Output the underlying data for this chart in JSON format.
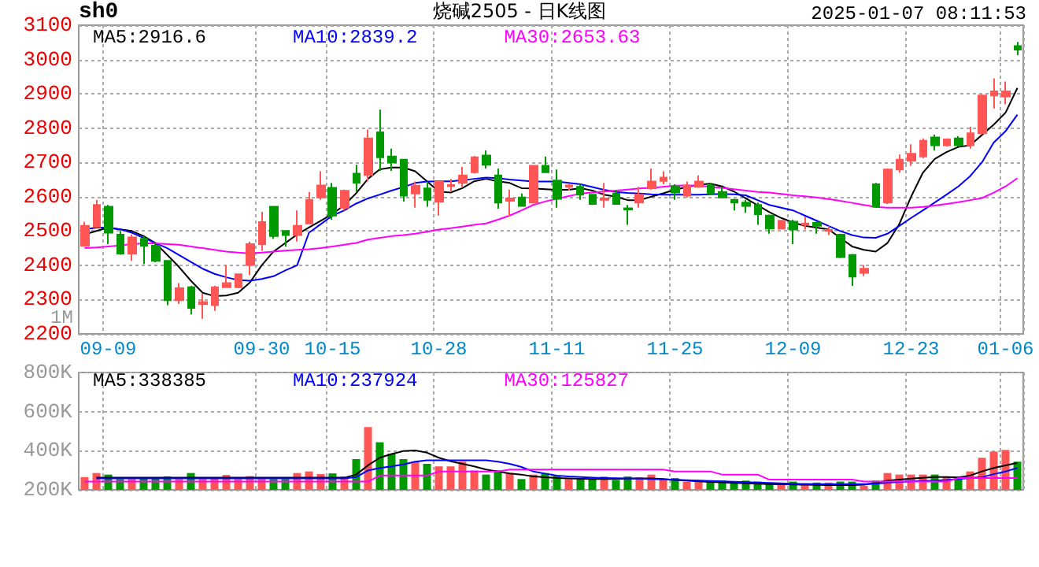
{
  "chart_data": [
    {
      "type": "candlestick",
      "title": "烧碱2505 - 日K线图",
      "annotations": [
        "sh0",
        "2025-01-07 08:11:53",
        "1M"
      ],
      "categories": [
        null,
        null,
        "09-09",
        null,
        null,
        null,
        null,
        null,
        null,
        null,
        null,
        null,
        null,
        null,
        null,
        "09-30",
        null,
        null,
        null,
        null,
        null,
        "10-15",
        null,
        null,
        null,
        null,
        null,
        null,
        null,
        null,
        "10-28",
        null,
        null,
        null,
        null,
        null,
        null,
        null,
        null,
        null,
        "11-11",
        null,
        null,
        null,
        null,
        null,
        null,
        null,
        null,
        null,
        "11-25",
        null,
        null,
        null,
        null,
        null,
        null,
        null,
        null,
        null,
        "12-09",
        null,
        null,
        null,
        null,
        null,
        null,
        null,
        null,
        null,
        "12-23",
        null,
        null,
        null,
        null,
        null,
        null,
        null,
        "01-06",
        null
      ],
      "ohlc": [
        [
          2457,
          2527,
          2454,
          2515
        ],
        [
          2512,
          2591,
          2512,
          2576
        ],
        [
          2571,
          2576,
          2462,
          2495
        ],
        [
          2489,
          2500,
          2431,
          2434
        ],
        [
          2434,
          2489,
          2413,
          2481
        ],
        [
          2477,
          2484,
          2404,
          2457
        ],
        [
          2457,
          2466,
          2409,
          2413
        ],
        [
          2413,
          2413,
          2284,
          2298
        ],
        [
          2298,
          2348,
          2287,
          2333
        ],
        [
          2336,
          2340,
          2257,
          2276
        ],
        [
          2287,
          2317,
          2244,
          2293
        ],
        [
          2284,
          2340,
          2267,
          2336
        ],
        [
          2336,
          2401,
          2336,
          2348
        ],
        [
          2336,
          2374,
          2333,
          2374
        ],
        [
          2401,
          2469,
          2371,
          2462
        ],
        [
          2462,
          2556,
          2442,
          2526
        ],
        [
          2571,
          2571,
          2477,
          2485
        ],
        [
          2500,
          2500,
          2454,
          2488
        ],
        [
          2488,
          2560,
          2469,
          2515
        ],
        [
          2522,
          2614,
          2522,
          2591
        ],
        [
          2598,
          2674,
          2591,
          2633
        ],
        [
          2626,
          2640,
          2533,
          2545
        ],
        [
          2568,
          2621,
          2560,
          2617
        ],
        [
          2667,
          2693,
          2614,
          2641
        ],
        [
          2664,
          2796,
          2644,
          2770
        ],
        [
          2788,
          2854,
          2675,
          2715
        ],
        [
          2717,
          2740,
          2675,
          2700
        ],
        [
          2708,
          2708,
          2586,
          2603
        ],
        [
          2609,
          2644,
          2568,
          2632
        ],
        [
          2624,
          2644,
          2571,
          2591
        ],
        [
          2586,
          2644,
          2545,
          2644
        ],
        [
          2631,
          2652,
          2614,
          2634
        ],
        [
          2641,
          2687,
          2629,
          2662
        ],
        [
          2671,
          2719,
          2667,
          2715
        ],
        [
          2720,
          2735,
          2682,
          2693
        ],
        [
          2662,
          2682,
          2565,
          2583
        ],
        [
          2588,
          2621,
          2542,
          2595
        ],
        [
          2598,
          2609,
          2573,
          2573
        ],
        [
          2583,
          2693,
          2580,
          2690
        ],
        [
          2690,
          2717,
          2671,
          2671
        ],
        [
          2647,
          2679,
          2568,
          2594
        ],
        [
          2629,
          2636,
          2618,
          2633
        ],
        [
          2629,
          2636,
          2591,
          2606
        ],
        [
          2606,
          2606,
          2576,
          2579
        ],
        [
          2591,
          2640,
          2568,
          2595
        ],
        [
          2609,
          2618,
          2579,
          2579
        ],
        [
          2566,
          2576,
          2518,
          2563
        ],
        [
          2583,
          2629,
          2568,
          2606
        ],
        [
          2624,
          2682,
          2621,
          2644
        ],
        [
          2646,
          2674,
          2636,
          2656
        ],
        [
          2629,
          2636,
          2591,
          2612
        ],
        [
          2603,
          2644,
          2598,
          2633
        ],
        [
          2629,
          2662,
          2626,
          2644
        ],
        [
          2633,
          2640,
          2606,
          2609
        ],
        [
          2614,
          2629,
          2598,
          2598
        ],
        [
          2591,
          2594,
          2560,
          2583
        ],
        [
          2583,
          2591,
          2553,
          2573
        ],
        [
          2576,
          2583,
          2518,
          2549
        ],
        [
          2545,
          2548,
          2492,
          2507
        ],
        [
          2507,
          2530,
          2507,
          2530
        ],
        [
          2527,
          2533,
          2462,
          2504
        ],
        [
          2518,
          2542,
          2504,
          2522
        ],
        [
          2524,
          2527,
          2492,
          2515
        ],
        [
          2500,
          2515,
          2488,
          2503
        ],
        [
          2489,
          2492,
          2421,
          2424
        ],
        [
          2430,
          2433,
          2340,
          2367
        ],
        [
          2378,
          2401,
          2369,
          2390
        ],
        [
          2636,
          2640,
          2568,
          2571
        ],
        [
          2583,
          2682,
          2579,
          2679
        ],
        [
          2679,
          2723,
          2670,
          2708
        ],
        [
          2705,
          2753,
          2690,
          2725
        ],
        [
          2717,
          2770,
          2712,
          2763
        ],
        [
          2773,
          2781,
          2735,
          2750
        ],
        [
          2750,
          2770,
          2746,
          2767
        ],
        [
          2770,
          2776,
          2746,
          2750
        ],
        [
          2750,
          2804,
          2740,
          2785
        ],
        [
          2785,
          2898,
          2781,
          2895
        ],
        [
          2895,
          2945,
          2857,
          2907
        ],
        [
          2892,
          2936,
          2869,
          2907
        ],
        [
          3039,
          3051,
          3013,
          3029
        ]
      ],
      "colors": [
        "#ff5555",
        "#ff5555",
        "#009900",
        "#009900",
        "#ff5555",
        "#009900",
        "#009900",
        "#009900",
        "#ff5555",
        "#009900",
        "#ff5555",
        "#ff5555",
        "#ff5555",
        "#ff5555",
        "#ff5555",
        "#ff5555",
        "#009900",
        "#009900",
        "#ff5555",
        "#ff5555",
        "#ff5555",
        "#009900",
        "#ff5555",
        "#009900",
        "#ff5555",
        "#009900",
        "#009900",
        "#009900",
        "#ff5555",
        "#009900",
        "#ff5555",
        "#ff5555",
        "#ff5555",
        "#ff5555",
        "#009900",
        "#009900",
        "#ff5555",
        "#009900",
        "#ff5555",
        "#009900",
        "#009900",
        "#ff5555",
        "#009900",
        "#009900",
        "#ff5555",
        "#009900",
        "#009900",
        "#ff5555",
        "#ff5555",
        "#ff5555",
        "#009900",
        "#ff5555",
        "#ff5555",
        "#009900",
        "#009900",
        "#009900",
        "#009900",
        "#009900",
        "#009900",
        "#ff5555",
        "#009900",
        "#ff5555",
        "#009900",
        "#ff5555",
        "#009900",
        "#009900",
        "#ff5555",
        "#009900",
        "#ff5555",
        "#ff5555",
        "#ff5555",
        "#ff5555",
        "#009900",
        "#ff5555",
        "#009900",
        "#ff5555",
        "#ff5555",
        "#ff5555",
        "#ff5555",
        "#009900"
      ],
      "series": [
        {
          "type": "line",
          "name": "MA5:2916.6",
          "color": "#000000",
          "values": [
            2490,
            2500,
            2510,
            2505,
            2500,
            2485,
            2465,
            2430,
            2395,
            2355,
            2320,
            2310,
            2312,
            2320,
            2350,
            2400,
            2440,
            2465,
            2490,
            2510,
            2530,
            2550,
            2575,
            2610,
            2652,
            2680,
            2685,
            2685,
            2674,
            2645,
            2615,
            2612,
            2625,
            2645,
            2652,
            2645,
            2640,
            2625,
            2624,
            2622,
            2620,
            2620,
            2625,
            2618,
            2606,
            2600,
            2590,
            2590,
            2600,
            2610,
            2620,
            2628,
            2635,
            2638,
            2630,
            2615,
            2595,
            2575,
            2555,
            2538,
            2525,
            2515,
            2510,
            2505,
            2480,
            2455,
            2445,
            2440,
            2465,
            2520,
            2600,
            2670,
            2710,
            2730,
            2745,
            2750,
            2780,
            2810,
            2845,
            2917
          ]
        },
        {
          "type": "line",
          "name": "MA10:2839.2",
          "color": "#0000ff",
          "values": [
            2505,
            2510,
            2510,
            2505,
            2495,
            2480,
            2465,
            2450,
            2430,
            2410,
            2390,
            2375,
            2365,
            2357,
            2355,
            2360,
            2368,
            2385,
            2400,
            2495,
            2520,
            2545,
            2560,
            2580,
            2595,
            2606,
            2618,
            2628,
            2640,
            2644,
            2645,
            2645,
            2648,
            2652,
            2656,
            2654,
            2650,
            2647,
            2644,
            2644,
            2644,
            2640,
            2636,
            2628,
            2620,
            2614,
            2611,
            2609,
            2607,
            2606,
            2606,
            2606,
            2606,
            2607,
            2608,
            2607,
            2604,
            2590,
            2576,
            2568,
            2560,
            2545,
            2530,
            2515,
            2500,
            2488,
            2481,
            2480,
            2492,
            2515,
            2538,
            2560,
            2583,
            2606,
            2630,
            2660,
            2700,
            2758,
            2791,
            2839
          ]
        },
        {
          "type": "line",
          "name": "MA30:2653.63",
          "color": "#ff00ff",
          "values": [
            2450,
            2452,
            2455,
            2458,
            2462,
            2464,
            2464,
            2462,
            2460,
            2455,
            2450,
            2445,
            2440,
            2437,
            2435,
            2437,
            2440,
            2443,
            2445,
            2447,
            2450,
            2455,
            2460,
            2465,
            2475,
            2480,
            2485,
            2488,
            2492,
            2498,
            2504,
            2508,
            2513,
            2518,
            2522,
            2533,
            2545,
            2560,
            2576,
            2586,
            2594,
            2602,
            2609,
            2612,
            2615,
            2618,
            2621,
            2624,
            2626,
            2629,
            2632,
            2633,
            2632,
            2629,
            2626,
            2622,
            2618,
            2614,
            2612,
            2608,
            2604,
            2601,
            2598,
            2593,
            2588,
            2582,
            2576,
            2570,
            2568,
            2568,
            2568,
            2570,
            2574,
            2579,
            2584,
            2590,
            2596,
            2612,
            2630,
            2654
          ]
        }
      ],
      "ylim": [
        2200,
        3100
      ],
      "yticks": [
        2200,
        2300,
        2400,
        2500,
        2600,
        2700,
        2800,
        2900,
        3000,
        3100
      ],
      "grid": true,
      "legend": "top"
    },
    {
      "type": "bar",
      "categories": [
        null,
        null,
        null,
        null,
        null,
        null,
        null,
        null,
        null,
        null,
        null,
        null,
        null,
        null,
        null,
        null,
        null,
        null,
        null,
        null,
        null,
        null,
        null,
        null,
        null,
        null,
        null,
        null,
        null,
        null,
        null,
        null,
        null,
        null,
        null,
        null,
        null,
        null,
        null,
        null,
        null,
        null,
        null,
        null,
        null,
        null,
        null,
        null,
        null,
        null,
        null,
        null,
        null,
        null,
        null,
        null,
        null,
        null,
        null,
        null,
        null,
        null,
        null,
        null,
        null,
        null,
        null,
        null,
        null,
        null,
        null,
        null,
        null,
        null,
        null,
        null,
        null,
        null,
        null,
        null
      ],
      "values": [
        265000,
        286000,
        278000,
        255000,
        255000,
        260000,
        260000,
        268000,
        255000,
        286000,
        255000,
        260000,
        276000,
        255000,
        270000,
        255000,
        255000,
        255000,
        286000,
        294000,
        281000,
        284000,
        268000,
        357000,
        521000,
        443000,
        385000,
        357000,
        344000,
        333000,
        320000,
        320000,
        344000,
        299000,
        278000,
        299000,
        286000,
        255000,
        278000,
        286000,
        273000,
        255000,
        260000,
        255000,
        268000,
        250000,
        268000,
        263000,
        278000,
        255000,
        260000,
        242000,
        250000,
        242000,
        247000,
        242000,
        247000,
        242000,
        237000,
        229000,
        242000,
        229000,
        237000,
        237000,
        242000,
        242000,
        221000,
        247000,
        286000,
        278000,
        278000,
        278000,
        278000,
        268000,
        260000,
        294000,
        364000,
        396000,
        404000,
        344000
      ],
      "colors": [
        "#ff5555",
        "#ff5555",
        "#009900",
        "#009900",
        "#ff5555",
        "#009900",
        "#009900",
        "#009900",
        "#ff5555",
        "#009900",
        "#ff5555",
        "#ff5555",
        "#ff5555",
        "#ff5555",
        "#ff5555",
        "#ff5555",
        "#009900",
        "#009900",
        "#ff5555",
        "#ff5555",
        "#ff5555",
        "#009900",
        "#ff5555",
        "#009900",
        "#ff5555",
        "#009900",
        "#009900",
        "#009900",
        "#ff5555",
        "#009900",
        "#ff5555",
        "#ff5555",
        "#ff5555",
        "#ff5555",
        "#009900",
        "#009900",
        "#ff5555",
        "#009900",
        "#ff5555",
        "#009900",
        "#009900",
        "#ff5555",
        "#009900",
        "#009900",
        "#ff5555",
        "#009900",
        "#009900",
        "#ff5555",
        "#ff5555",
        "#ff5555",
        "#009900",
        "#ff5555",
        "#ff5555",
        "#009900",
        "#009900",
        "#009900",
        "#009900",
        "#009900",
        "#009900",
        "#ff5555",
        "#009900",
        "#ff5555",
        "#009900",
        "#ff5555",
        "#009900",
        "#009900",
        "#ff5555",
        "#009900",
        "#ff5555",
        "#ff5555",
        "#ff5555",
        "#ff5555",
        "#009900",
        "#ff5555",
        "#009900",
        "#ff5555",
        "#ff5555",
        "#ff5555",
        "#ff5555",
        "#009900"
      ],
      "series": [
        {
          "type": "line",
          "name": "MA5:338385",
          "color": "#000000",
          "values": [
            null,
            262000,
            262000,
            262000,
            262000,
            262000,
            262000,
            262000,
            262000,
            262000,
            262000,
            262000,
            262000,
            262000,
            262000,
            262000,
            262000,
            262000,
            262000,
            262000,
            262000,
            262000,
            262000,
            278000,
            325000,
            364000,
            383000,
            398000,
            401000,
            390000,
            364000,
            346000,
            333000,
            320000,
            304000,
            294000,
            284000,
            278000,
            268000,
            264000,
            260000,
            258000,
            256000,
            255000,
            255000,
            255000,
            257000,
            258000,
            258000,
            255000,
            250000,
            247000,
            243000,
            240000,
            238000,
            235000,
            233000,
            231000,
            229000,
            228000,
            227000,
            226000,
            225000,
            224000,
            224000,
            224000,
            226000,
            235000,
            247000,
            252000,
            257000,
            261000,
            265000,
            265000,
            263000,
            273000,
            294000,
            312000,
            325000,
            338000
          ]
        },
        {
          "type": "line",
          "name": "MA10:237924",
          "color": "#0000ff",
          "values": [
            null,
            258000,
            258000,
            258000,
            258000,
            258000,
            258000,
            258000,
            258000,
            258000,
            258000,
            258000,
            258000,
            258000,
            258000,
            258000,
            258000,
            258000,
            258000,
            258000,
            258000,
            258000,
            258000,
            265000,
            299000,
            312000,
            320000,
            330000,
            344000,
            351000,
            351000,
            351000,
            351000,
            351000,
            351000,
            344000,
            333000,
            317000,
            294000,
            283000,
            273000,
            268000,
            265000,
            262000,
            260000,
            259000,
            258000,
            257000,
            255000,
            253000,
            251000,
            249000,
            247000,
            245000,
            243000,
            241000,
            239000,
            237000,
            235000,
            233000,
            231000,
            230000,
            229000,
            229000,
            229000,
            229000,
            229000,
            231000,
            236000,
            240000,
            243000,
            246000,
            247000,
            250000,
            255000,
            260000,
            265000,
            280000,
            294000,
            312000
          ]
        },
        {
          "type": "line",
          "name": "MA30:125827",
          "color": "#ff00ff",
          "values": [
            242000,
            242000,
            242000,
            242000,
            242000,
            242000,
            242000,
            242000,
            242000,
            242000,
            242000,
            242000,
            242000,
            242000,
            242000,
            242000,
            242000,
            242000,
            242000,
            242000,
            242000,
            242000,
            242000,
            242000,
            242000,
            273000,
            273000,
            273000,
            273000,
            273000,
            294000,
            294000,
            294000,
            294000,
            294000,
            294000,
            304000,
            304000,
            304000,
            304000,
            304000,
            304000,
            304000,
            304000,
            304000,
            304000,
            304000,
            304000,
            304000,
            304000,
            294000,
            294000,
            294000,
            294000,
            278000,
            278000,
            278000,
            278000,
            252000,
            252000,
            252000,
            252000,
            252000,
            252000,
            252000,
            252000,
            242000,
            242000,
            242000,
            242000,
            242000,
            242000,
            242000,
            242000,
            260000,
            260000,
            260000,
            260000,
            260000,
            260000
          ]
        }
      ],
      "ylim": [
        200000,
        800000
      ],
      "yticks": [
        {
          "value": 200000,
          "label": "200K"
        },
        {
          "value": 400000,
          "label": "400K"
        },
        {
          "value": 600000,
          "label": "600K"
        },
        {
          "value": 800000,
          "label": "800K"
        }
      ],
      "grid": true,
      "legend": "top",
      "tick_labels": "y"
    }
  ]
}
